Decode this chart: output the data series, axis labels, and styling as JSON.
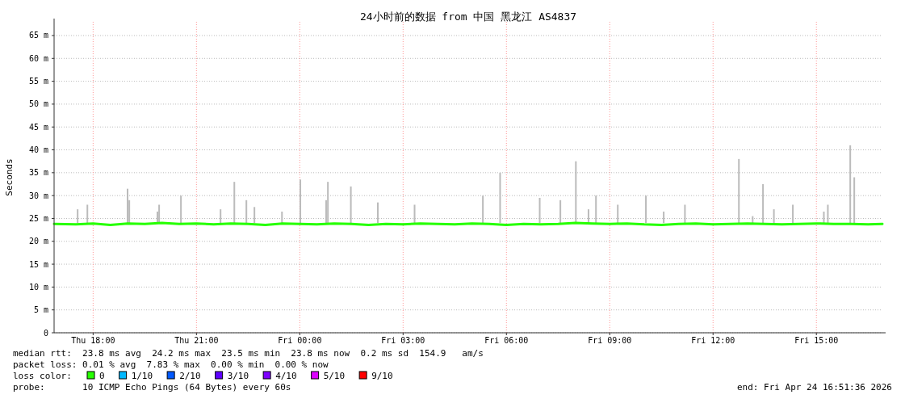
{
  "chart_data": {
    "type": "line",
    "title": "24小时前的数据 from 中国 黑龙江 AS4837",
    "ylabel": "Seconds",
    "xlim": [
      "2026-04-23T16:52",
      "2026-04-24T16:55"
    ],
    "xticks": [
      {
        "value": "2026-04-23T18:00",
        "label": "Thu 18:00"
      },
      {
        "value": "2026-04-23T21:00",
        "label": "Thu 21:00"
      },
      {
        "value": "2026-04-24T00:00",
        "label": "Fri 00:00"
      },
      {
        "value": "2026-04-24T03:00",
        "label": "Fri 03:00"
      },
      {
        "value": "2026-04-24T06:00",
        "label": "Fri 06:00"
      },
      {
        "value": "2026-04-24T09:00",
        "label": "Fri 09:00"
      },
      {
        "value": "2026-04-24T12:00",
        "label": "Fri 12:00"
      },
      {
        "value": "2026-04-24T15:00",
        "label": "Fri 15:00"
      }
    ],
    "ylim": [
      0,
      68
    ],
    "yticks": [
      0,
      {
        "value": 5,
        "label": "5 m"
      },
      {
        "value": 10,
        "label": "10 m"
      },
      {
        "value": 15,
        "label": "15 m"
      },
      {
        "value": 20,
        "label": "20 m"
      },
      {
        "value": 25,
        "label": "25 m"
      },
      {
        "value": 30,
        "label": "30 m"
      },
      {
        "value": 35,
        "label": "35 m"
      },
      {
        "value": 40,
        "label": "40 m"
      },
      {
        "value": 45,
        "label": "45 m"
      },
      {
        "value": 50,
        "label": "50 m"
      },
      {
        "value": 55,
        "label": "55 m"
      },
      {
        "value": 60,
        "label": "60 m"
      },
      {
        "value": 65,
        "label": "65 m"
      }
    ],
    "grid": true,
    "legend": "bottom left",
    "legend_title": "loss color:",
    "series": [
      {
        "type": "bar",
        "color": "#bbbbbb",
        "x": [
          "2026-04-23T17:33",
          "2026-04-23T17:50",
          "2026-04-23T19:00",
          "2026-04-23T19:03",
          "2026-04-23T19:52",
          "2026-04-23T19:55",
          "2026-04-23T20:33",
          "2026-04-23T21:42",
          "2026-04-23T22:06",
          "2026-04-23T22:27",
          "2026-04-23T22:41",
          "2026-04-23T23:29",
          "2026-04-24T00:01",
          "2026-04-24T00:46",
          "2026-04-24T00:49",
          "2026-04-24T01:29",
          "2026-04-24T02:16",
          "2026-04-24T03:20",
          "2026-04-24T05:19",
          "2026-04-24T05:49",
          "2026-04-24T06:58",
          "2026-04-24T07:34",
          "2026-04-24T08:01",
          "2026-04-24T08:23",
          "2026-04-24T08:36",
          "2026-04-24T09:14",
          "2026-04-24T10:03",
          "2026-04-24T10:34",
          "2026-04-24T11:11",
          "2026-04-24T12:45",
          "2026-04-24T13:09",
          "2026-04-24T13:27",
          "2026-04-24T13:46",
          "2026-04-24T14:19",
          "2026-04-24T15:13",
          "2026-04-24T15:20",
          "2026-04-24T15:59",
          "2026-04-24T16:06"
        ],
        "base": [
          24,
          24,
          24,
          24,
          24,
          24,
          24,
          24,
          24,
          24,
          24,
          24,
          24,
          24,
          24,
          24,
          24,
          24,
          24,
          24,
          24,
          24,
          24,
          24,
          24,
          24,
          24,
          24,
          24,
          24,
          24,
          24,
          24,
          24,
          24,
          24,
          24,
          24
        ],
        "values": [
          3,
          4,
          7.5,
          5,
          2.5,
          4,
          6,
          3,
          9,
          5,
          3.5,
          2.5,
          9.5,
          5,
          9,
          8,
          4.5,
          4,
          6,
          11,
          5.5,
          5,
          13.5,
          3,
          6,
          4,
          6,
          2.5,
          4,
          14,
          1.5,
          8.5,
          3,
          4,
          2.5,
          4,
          17,
          10
        ]
      },
      {
        "name": "0",
        "color": "#26ff00",
        "x": [
          "2026-04-23T16:52",
          "2026-04-23T17:30",
          "2026-04-23T18:00",
          "2026-04-23T18:30",
          "2026-04-23T19:00",
          "2026-04-23T19:30",
          "2026-04-23T20:00",
          "2026-04-23T20:30",
          "2026-04-23T21:00",
          "2026-04-23T21:30",
          "2026-04-23T22:00",
          "2026-04-23T22:30",
          "2026-04-23T23:00",
          "2026-04-23T23:30",
          "2026-04-24T00:00",
          "2026-04-24T00:30",
          "2026-04-24T01:00",
          "2026-04-24T01:30",
          "2026-04-24T02:00",
          "2026-04-24T02:30",
          "2026-04-24T03:00",
          "2026-04-24T03:30",
          "2026-04-24T04:00",
          "2026-04-24T04:30",
          "2026-04-24T05:00",
          "2026-04-24T05:30",
          "2026-04-24T06:00",
          "2026-04-24T06:30",
          "2026-04-24T07:00",
          "2026-04-24T07:30",
          "2026-04-24T08:00",
          "2026-04-24T08:30",
          "2026-04-24T09:00",
          "2026-04-24T09:30",
          "2026-04-24T10:00",
          "2026-04-24T10:30",
          "2026-04-24T11:00",
          "2026-04-24T11:30",
          "2026-04-24T12:00",
          "2026-04-24T12:30",
          "2026-04-24T13:00",
          "2026-04-24T13:30",
          "2026-04-24T14:00",
          "2026-04-24T14:30",
          "2026-04-24T15:00",
          "2026-04-24T15:30",
          "2026-04-24T16:00",
          "2026-04-24T16:30",
          "2026-04-24T16:55"
        ],
        "values": [
          23.8,
          23.7,
          23.9,
          23.6,
          23.9,
          23.8,
          24.0,
          23.8,
          23.9,
          23.7,
          23.9,
          23.8,
          23.6,
          23.9,
          23.8,
          23.7,
          23.9,
          23.8,
          23.6,
          23.8,
          23.7,
          23.9,
          23.8,
          23.7,
          23.9,
          23.8,
          23.6,
          23.8,
          23.7,
          23.8,
          24.0,
          23.9,
          23.8,
          23.9,
          23.7,
          23.6,
          23.8,
          23.9,
          23.7,
          23.8,
          23.9,
          23.8,
          23.7,
          23.8,
          23.9,
          23.8,
          23.8,
          23.7,
          23.8
        ]
      },
      {
        "name": "1/10",
        "color": "#00b8ff"
      },
      {
        "name": "2/10",
        "color": "#0059ff"
      },
      {
        "name": "3/10",
        "color": "#5e00ff"
      },
      {
        "name": "4/10",
        "color": "#7e00ff"
      },
      {
        "name": "5/10",
        "color": "#dd00ff"
      },
      {
        "name": "9/10",
        "color": "#ff0000"
      }
    ],
    "annotations": [
      "median rtt:  23.8 ms avg  24.2 ms max  23.5 ms min  23.8 ms now  0.2 ms sd  154.9   am/s",
      "packet loss: 0.01 % avg  7.83 % max  0.00 % min  0.00 % now",
      "probe:       10 ICMP Echo Pings (64 Bytes) every 60s",
      "end: Fri Apr 24 16:51:36 2026"
    ]
  }
}
